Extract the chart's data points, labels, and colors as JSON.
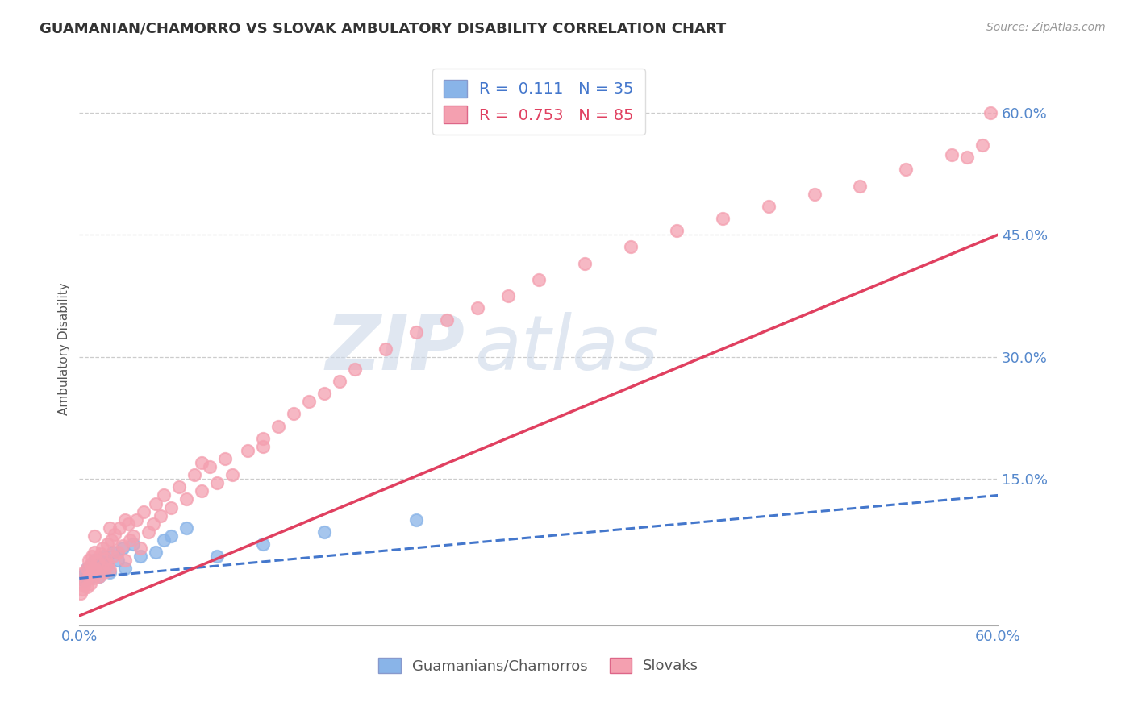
{
  "title": "GUAMANIAN/CHAMORRO VS SLOVAK AMBULATORY DISABILITY CORRELATION CHART",
  "source": "Source: ZipAtlas.com",
  "ylabel": "Ambulatory Disability",
  "legend_label1": "Guamanians/Chamorros",
  "legend_label2": "Slovaks",
  "r1": 0.111,
  "n1": 35,
  "r2": 0.753,
  "n2": 85,
  "color1": "#89b4e8",
  "color2": "#f4a0b0",
  "line_color1": "#4477cc",
  "line_color2": "#e04060",
  "xlim": [
    0.0,
    0.6
  ],
  "ylim": [
    -0.03,
    0.65
  ],
  "background_color": "#ffffff",
  "watermark_color": "#ccd8e8",
  "guamanian_x": [
    0.002,
    0.003,
    0.004,
    0.005,
    0.005,
    0.006,
    0.007,
    0.007,
    0.008,
    0.008,
    0.009,
    0.01,
    0.01,
    0.011,
    0.012,
    0.013,
    0.014,
    0.015,
    0.016,
    0.018,
    0.02,
    0.022,
    0.025,
    0.028,
    0.03,
    0.035,
    0.04,
    0.05,
    0.055,
    0.06,
    0.07,
    0.09,
    0.12,
    0.16,
    0.22
  ],
  "guamanian_y": [
    0.03,
    0.025,
    0.035,
    0.04,
    0.028,
    0.032,
    0.038,
    0.042,
    0.03,
    0.045,
    0.033,
    0.038,
    0.05,
    0.035,
    0.042,
    0.03,
    0.048,
    0.04,
    0.055,
    0.045,
    0.035,
    0.06,
    0.05,
    0.065,
    0.04,
    0.07,
    0.055,
    0.06,
    0.075,
    0.08,
    0.09,
    0.055,
    0.07,
    0.085,
    0.1
  ],
  "slovak_x": [
    0.001,
    0.002,
    0.003,
    0.003,
    0.004,
    0.005,
    0.005,
    0.006,
    0.006,
    0.007,
    0.007,
    0.008,
    0.008,
    0.009,
    0.01,
    0.01,
    0.011,
    0.012,
    0.013,
    0.014,
    0.015,
    0.015,
    0.016,
    0.017,
    0.018,
    0.019,
    0.02,
    0.021,
    0.022,
    0.023,
    0.025,
    0.026,
    0.028,
    0.03,
    0.032,
    0.033,
    0.035,
    0.037,
    0.04,
    0.042,
    0.045,
    0.048,
    0.05,
    0.053,
    0.055,
    0.06,
    0.065,
    0.07,
    0.075,
    0.08,
    0.085,
    0.09,
    0.095,
    0.1,
    0.11,
    0.12,
    0.13,
    0.14,
    0.15,
    0.16,
    0.17,
    0.18,
    0.2,
    0.22,
    0.24,
    0.26,
    0.28,
    0.3,
    0.33,
    0.36,
    0.39,
    0.42,
    0.45,
    0.48,
    0.51,
    0.54,
    0.57,
    0.58,
    0.59,
    0.595,
    0.01,
    0.02,
    0.03,
    0.08,
    0.12
  ],
  "slovak_y": [
    0.01,
    0.015,
    0.02,
    0.035,
    0.025,
    0.018,
    0.04,
    0.03,
    0.05,
    0.022,
    0.045,
    0.035,
    0.055,
    0.028,
    0.04,
    0.06,
    0.038,
    0.048,
    0.03,
    0.058,
    0.042,
    0.065,
    0.035,
    0.052,
    0.07,
    0.045,
    0.038,
    0.075,
    0.055,
    0.082,
    0.06,
    0.09,
    0.068,
    0.05,
    0.095,
    0.075,
    0.08,
    0.1,
    0.065,
    0.11,
    0.085,
    0.095,
    0.12,
    0.105,
    0.13,
    0.115,
    0.14,
    0.125,
    0.155,
    0.135,
    0.165,
    0.145,
    0.175,
    0.155,
    0.185,
    0.2,
    0.215,
    0.23,
    0.245,
    0.255,
    0.27,
    0.285,
    0.31,
    0.33,
    0.345,
    0.36,
    0.375,
    0.395,
    0.415,
    0.435,
    0.455,
    0.47,
    0.485,
    0.5,
    0.51,
    0.53,
    0.548,
    0.545,
    0.56,
    0.6,
    0.08,
    0.09,
    0.1,
    0.17,
    0.19
  ],
  "line1_x0": 0.0,
  "line1_y0": 0.028,
  "line1_x1": 0.6,
  "line1_y1": 0.13,
  "line2_x0": 0.0,
  "line2_y0": -0.018,
  "line2_x1": 0.6,
  "line2_y1": 0.45
}
